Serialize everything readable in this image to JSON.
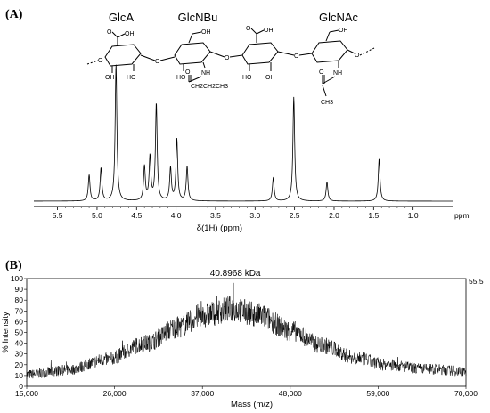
{
  "panel_a": {
    "label": "(A)",
    "structure": {
      "residues": [
        "GlcA",
        "GlcNBu",
        "GlcNAc"
      ],
      "atoms": {
        "cooh": "OH",
        "ho": "HO",
        "oh": "OH",
        "o": "O",
        "nh": "NH",
        "butyryl": "CH2CH2CH3",
        "methyl": "CH3",
        "carbonyl_o": "O"
      }
    }
  },
  "panel_b": {
    "label": "(B)",
    "peak_label": "40.8968 kDa",
    "right_scale": "55.5"
  },
  "chart_data": [
    {
      "type": "line",
      "title": "",
      "xlabel": "δ(1H) (ppm)",
      "x_unit": "ppm",
      "xlim": [
        5.8,
        0.5
      ],
      "x_reversed": true,
      "x_ticks": [
        "5.5",
        "5.0",
        "4.5",
        "4.0",
        "3.5",
        "3.0",
        "2.5",
        "2.0",
        "1.5",
        "1.0"
      ],
      "y_axis_shown": false,
      "grid": false,
      "peaks": [
        {
          "ppm": 5.1,
          "height": 0.19
        },
        {
          "ppm": 4.95,
          "height": 0.24
        },
        {
          "ppm": 4.76,
          "height": 1.0
        },
        {
          "ppm": 4.4,
          "height": 0.25
        },
        {
          "ppm": 4.33,
          "height": 0.32
        },
        {
          "ppm": 4.25,
          "height": 0.71
        },
        {
          "ppm": 4.07,
          "height": 0.24
        },
        {
          "ppm": 3.99,
          "height": 0.45
        },
        {
          "ppm": 3.86,
          "height": 0.25
        },
        {
          "ppm": 2.77,
          "height": 0.17
        },
        {
          "ppm": 2.51,
          "height": 0.76
        },
        {
          "ppm": 2.09,
          "height": 0.14
        },
        {
          "ppm": 1.43,
          "height": 0.31
        }
      ]
    },
    {
      "type": "line",
      "title": "",
      "xlabel": "Mass (m/z)",
      "ylabel": "% Intensity",
      "xlim": [
        15000,
        70000
      ],
      "ylim": [
        0,
        100
      ],
      "x_ticks": [
        "15,000",
        "26,000",
        "37,000",
        "48,000",
        "59,000",
        "70,000"
      ],
      "y_ticks": [
        "0",
        "10",
        "20",
        "30",
        "40",
        "50",
        "60",
        "70",
        "80",
        "90",
        "100"
      ],
      "grid": false,
      "envelope": [
        {
          "x": 15000,
          "y": 11
        },
        {
          "x": 20000,
          "y": 15
        },
        {
          "x": 25000,
          "y": 25
        },
        {
          "x": 30000,
          "y": 40
        },
        {
          "x": 34000,
          "y": 55
        },
        {
          "x": 37000,
          "y": 66
        },
        {
          "x": 40900,
          "y": 72
        },
        {
          "x": 44000,
          "y": 66
        },
        {
          "x": 48000,
          "y": 52
        },
        {
          "x": 52000,
          "y": 38
        },
        {
          "x": 56000,
          "y": 27
        },
        {
          "x": 60000,
          "y": 20
        },
        {
          "x": 65000,
          "y": 16
        },
        {
          "x": 70000,
          "y": 14
        }
      ],
      "peak": {
        "x": 40896.8,
        "y": 96
      }
    }
  ]
}
